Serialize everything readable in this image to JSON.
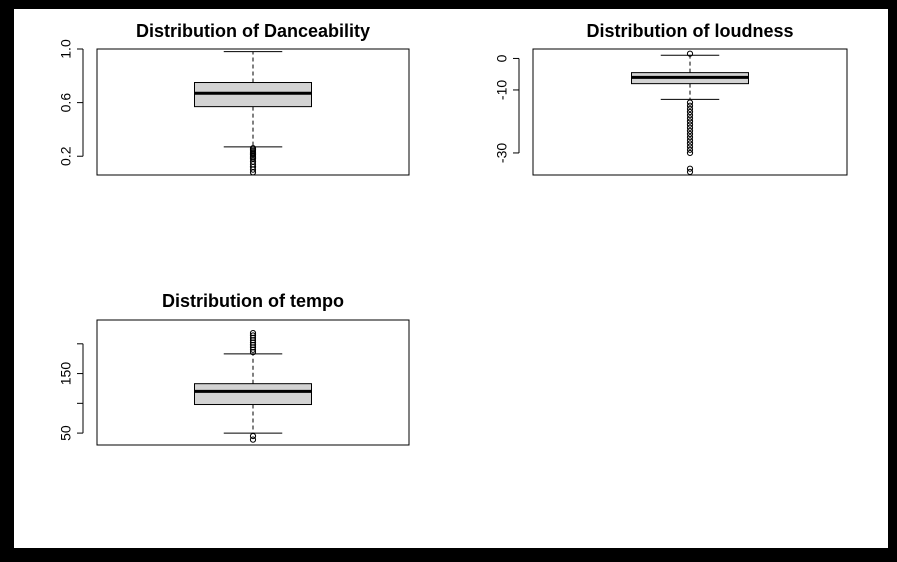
{
  "colors": {
    "background": "#000000",
    "panel": "#ffffff",
    "box_fill": "#d3d3d3",
    "stroke": "#000000"
  },
  "chart_data": [
    {
      "type": "boxplot",
      "title": "Distribution of Danceability",
      "ylim": [
        0.06,
        1.0
      ],
      "yticks": [
        0.2,
        0.6,
        1.0
      ],
      "ytick_labels": [
        "0.2",
        "0.6",
        "1.0"
      ],
      "stats": {
        "whisker_low": 0.27,
        "q1": 0.57,
        "median": 0.67,
        "q3": 0.75,
        "whisker_high": 0.98
      },
      "outliers": [
        0.08,
        0.1,
        0.12,
        0.14,
        0.16,
        0.18,
        0.19,
        0.2,
        0.21,
        0.22,
        0.23,
        0.24,
        0.25,
        0.26
      ]
    },
    {
      "type": "boxplot",
      "title": "Distribution of loudness",
      "ylim": [
        -37,
        3
      ],
      "yticks": [
        -30,
        -10,
        0
      ],
      "ytick_labels": [
        "-30",
        "-10",
        "0"
      ],
      "stats": {
        "whisker_low": -13,
        "q1": -8,
        "median": -6,
        "q3": -4.5,
        "whisker_high": 1
      },
      "outliers": [
        1.5,
        -14,
        -15,
        -16,
        -17,
        -18,
        -19,
        -20,
        -21,
        -22,
        -23,
        -24,
        -25,
        -26,
        -27,
        -28,
        -29,
        -30,
        -35,
        -36
      ]
    },
    {
      "type": "boxplot",
      "title": "Distribution of tempo",
      "ylim": [
        30,
        240
      ],
      "yticks": [
        50,
        100,
        150,
        200
      ],
      "ytick_labels": [
        "50",
        "",
        "150",
        ""
      ],
      "stats": {
        "whisker_low": 50,
        "q1": 98,
        "median": 120,
        "q3": 133,
        "whisker_high": 183
      },
      "outliers": [
        39,
        45,
        186,
        190,
        194,
        198,
        202,
        206,
        210,
        214,
        218
      ]
    }
  ]
}
